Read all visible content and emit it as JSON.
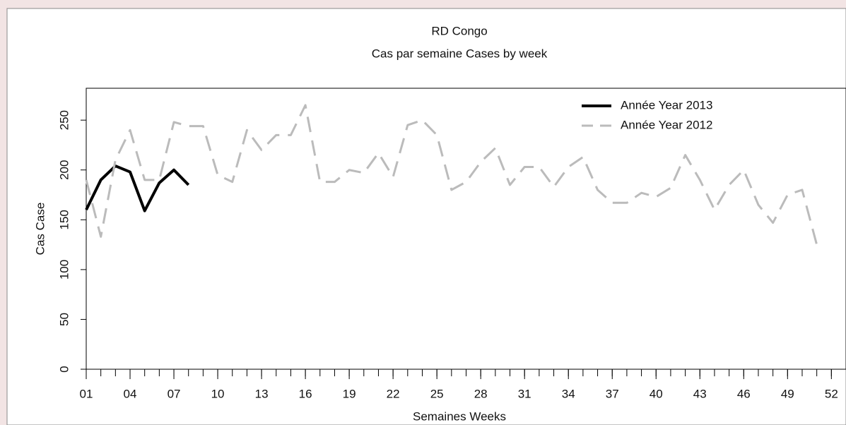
{
  "chart_data": {
    "type": "line",
    "title": "RD Congo",
    "subtitle": "Cas par semaine Cases by week",
    "x_label": "Semaines Weeks",
    "y_label": "Cas Case",
    "x": [
      1,
      2,
      3,
      4,
      5,
      6,
      7,
      8,
      9,
      10,
      11,
      12,
      13,
      14,
      15,
      16,
      17,
      18,
      19,
      20,
      21,
      22,
      23,
      24,
      25,
      26,
      27,
      28,
      29,
      30,
      31,
      32,
      33,
      34,
      35,
      36,
      37,
      38,
      39,
      40,
      41,
      42,
      43,
      44,
      45,
      46,
      47,
      48,
      49,
      50,
      51
    ],
    "series": [
      {
        "name": "Année Year 2013",
        "color": "#000000",
        "dashed": false,
        "values": [
          160,
          190,
          204,
          198,
          159,
          187,
          200,
          185,
          null,
          null,
          null,
          null,
          null,
          null,
          null,
          null,
          null,
          null,
          null,
          null,
          null,
          null,
          null,
          null,
          null,
          null,
          null,
          null,
          null,
          null,
          null,
          null,
          null,
          null,
          null,
          null,
          null,
          null,
          null,
          null,
          null,
          null,
          null,
          null,
          null,
          null,
          null,
          null,
          null,
          null,
          null
        ]
      },
      {
        "name": "Année Year 2012",
        "color": "#bbbbbb",
        "dashed": true,
        "values": [
          190,
          133,
          210,
          240,
          190,
          190,
          248,
          244,
          244,
          195,
          188,
          240,
          220,
          235,
          235,
          265,
          188,
          188,
          200,
          197,
          217,
          193,
          245,
          250,
          235,
          180,
          188,
          208,
          222,
          185,
          203,
          203,
          183,
          203,
          213,
          180,
          167,
          167,
          177,
          173,
          182,
          215,
          190,
          160,
          185,
          200,
          165,
          147,
          175,
          180,
          125
        ]
      }
    ],
    "xlim": [
      1,
      53
    ],
    "ylim": [
      0,
      282
    ],
    "yticks": [
      0,
      50,
      100,
      150,
      200,
      250
    ],
    "xticks": [
      {
        "value": 1,
        "label": "01"
      },
      {
        "value": 4,
        "label": "04"
      },
      {
        "value": 7,
        "label": "07"
      },
      10,
      13,
      16,
      19,
      22,
      25,
      28,
      31,
      34,
      37,
      40,
      43,
      46,
      49,
      52
    ],
    "xminorticks": [
      1,
      2,
      3,
      4,
      5,
      6,
      7,
      8,
      9,
      10,
      11,
      12,
      13,
      14,
      15,
      16,
      17,
      18,
      19,
      20,
      21,
      22,
      23,
      24,
      25,
      26,
      27,
      28,
      29,
      30,
      31,
      32,
      33,
      34,
      35,
      36,
      37,
      38,
      39,
      40,
      41,
      42,
      43,
      44,
      45,
      46,
      47,
      48,
      49,
      50,
      51,
      52
    ],
    "legend": "top-right"
  }
}
